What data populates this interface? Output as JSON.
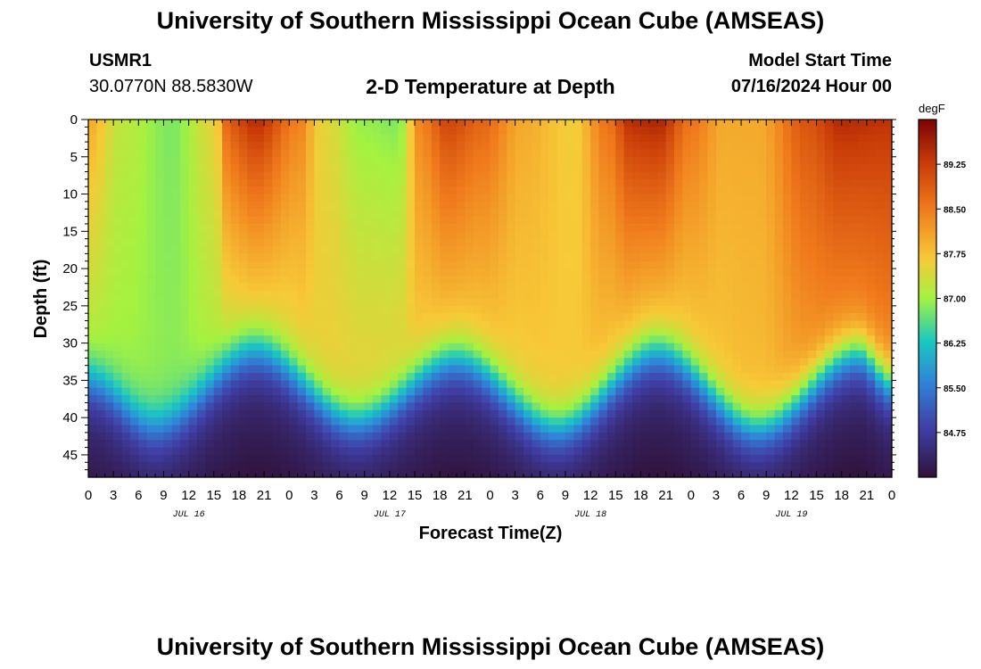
{
  "page": {
    "title": "University of Southern Mississippi Ocean Cube (AMSEAS)",
    "footer_title": "University of Southern Mississippi Ocean Cube (AMSEAS)",
    "station_id": "USMR1",
    "station_coords": "30.0770N  88.5830W",
    "model_start_label": "Model Start Time",
    "model_start_value": "07/16/2024 Hour 00"
  },
  "chart_data": {
    "type": "heatmap",
    "title": "2-D Temperature at Depth",
    "xlabel": "Forecast Time(Z)",
    "ylabel": "Depth (ft)",
    "x_range": [
      0,
      96
    ],
    "x_unit": "hours since 07/16/2024 00Z",
    "x_ticks": [
      0,
      3,
      6,
      9,
      12,
      15,
      18,
      21,
      24,
      27,
      30,
      33,
      36,
      39,
      42,
      45,
      48,
      51,
      54,
      57,
      60,
      63,
      66,
      69,
      72,
      75,
      78,
      81,
      84,
      87,
      90,
      93,
      96
    ],
    "x_tick_labels": [
      "0",
      "3",
      "6",
      "9",
      "12",
      "15",
      "18",
      "21",
      "0",
      "3",
      "6",
      "9",
      "12",
      "15",
      "18",
      "21",
      "0",
      "3",
      "6",
      "9",
      "12",
      "15",
      "18",
      "21",
      "0",
      "3",
      "6",
      "9",
      "12",
      "15",
      "18",
      "21",
      "0"
    ],
    "day_labels": [
      {
        "hour": 12,
        "label": "JUL 16"
      },
      {
        "hour": 36,
        "label": "JUL 17"
      },
      {
        "hour": 60,
        "label": "JUL 18"
      },
      {
        "hour": 84,
        "label": "JUL 19"
      }
    ],
    "y_range": [
      0,
      48
    ],
    "y_ticks": [
      0,
      5,
      10,
      15,
      20,
      25,
      30,
      35,
      40,
      45
    ],
    "y_tick_labels": [
      "0",
      "5",
      "10",
      "15",
      "20",
      "25",
      "30",
      "35",
      "40",
      "45"
    ],
    "y_inverted": true,
    "colorbar": {
      "unit": "degF",
      "range": [
        84.0,
        90.0
      ],
      "ticks": [
        84.75,
        85.5,
        86.25,
        87.0,
        87.75,
        88.5,
        89.25
      ],
      "tick_labels": [
        "84.75",
        "85.50",
        "86.25",
        "87.00",
        "87.75",
        "88.50",
        "89.25"
      ]
    },
    "value_range": [
      84.0,
      90.0
    ],
    "layer_model": "two-layer: warm upper layer above a cold bottom layer; thermocline depth oscillates with time",
    "bottom_temp": 84.4,
    "thermocline_depth_ft": [
      {
        "hour": 0,
        "depth": 34
      },
      {
        "hour": 8,
        "depth": 40
      },
      {
        "hour": 20,
        "depth": 30
      },
      {
        "hour": 32,
        "depth": 39
      },
      {
        "hour": 44,
        "depth": 31
      },
      {
        "hour": 56,
        "depth": 40
      },
      {
        "hour": 68,
        "depth": 30
      },
      {
        "hour": 80,
        "depth": 40
      },
      {
        "hour": 92,
        "depth": 30
      },
      {
        "hour": 96,
        "depth": 34
      }
    ],
    "upper_temp_shallow": [
      {
        "hour": 0,
        "t": 88.0
      },
      {
        "hour": 4,
        "t": 87.2
      },
      {
        "hour": 10,
        "t": 86.8
      },
      {
        "hour": 15,
        "t": 87.5
      },
      {
        "hour": 17,
        "t": 89.0
      },
      {
        "hour": 20,
        "t": 89.5
      },
      {
        "hour": 25,
        "t": 88.5
      },
      {
        "hour": 28,
        "t": 87.5
      },
      {
        "hour": 33,
        "t": 86.9
      },
      {
        "hour": 37,
        "t": 86.8
      },
      {
        "hour": 40,
        "t": 88.5
      },
      {
        "hour": 43,
        "t": 89.2
      },
      {
        "hour": 47,
        "t": 88.8
      },
      {
        "hour": 52,
        "t": 88.0
      },
      {
        "hour": 58,
        "t": 87.6
      },
      {
        "hour": 62,
        "t": 88.6
      },
      {
        "hour": 65,
        "t": 89.5
      },
      {
        "hour": 68,
        "t": 89.6
      },
      {
        "hour": 72,
        "t": 88.6
      },
      {
        "hour": 76,
        "t": 88.0
      },
      {
        "hour": 80,
        "t": 88.0
      },
      {
        "hour": 86,
        "t": 89.0
      },
      {
        "hour": 90,
        "t": 89.5
      },
      {
        "hour": 96,
        "t": 89.4
      }
    ],
    "upper_temp_deep": [
      {
        "hour": 0,
        "t": 87.0
      },
      {
        "hour": 10,
        "t": 86.9
      },
      {
        "hour": 20,
        "t": 87.3
      },
      {
        "hour": 30,
        "t": 87.6
      },
      {
        "hour": 40,
        "t": 87.6
      },
      {
        "hour": 50,
        "t": 87.6
      },
      {
        "hour": 60,
        "t": 87.7
      },
      {
        "hour": 70,
        "t": 87.6
      },
      {
        "hour": 80,
        "t": 87.8
      },
      {
        "hour": 88,
        "t": 88.2
      },
      {
        "hour": 96,
        "t": 88.3
      }
    ]
  }
}
